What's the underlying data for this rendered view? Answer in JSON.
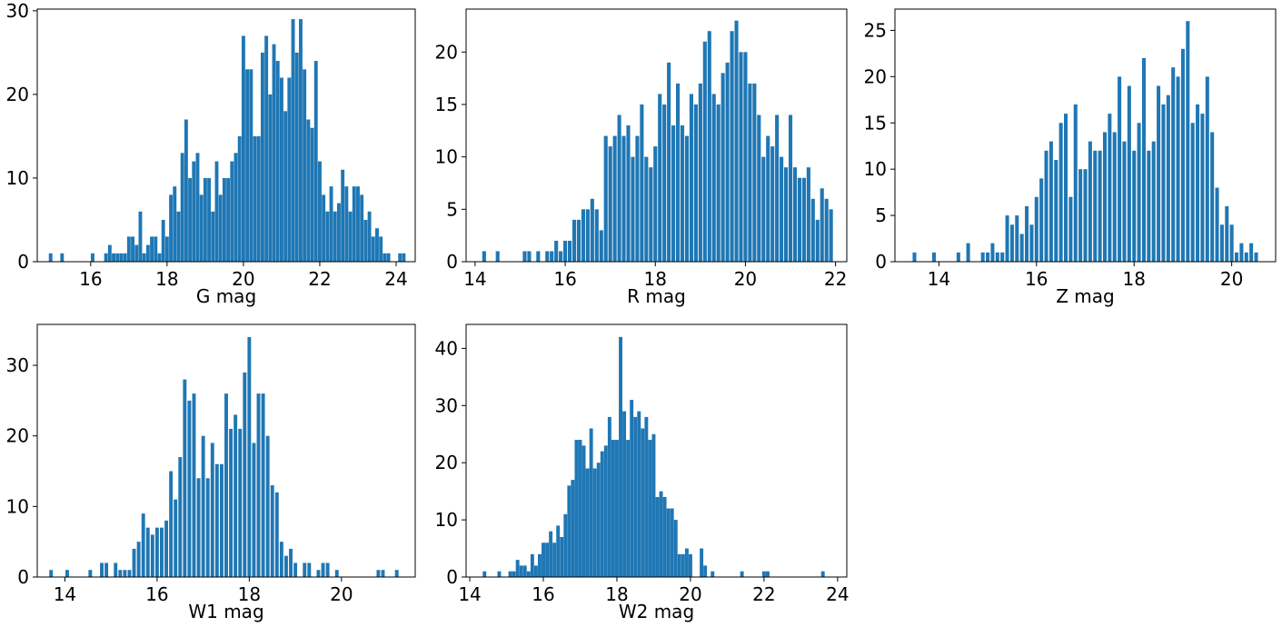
{
  "figure": {
    "background": "#ffffff",
    "bar_color": "#1f77b4"
  },
  "chart_data": [
    {
      "type": "bar",
      "title": "",
      "xlabel": "G mag",
      "ylabel": "",
      "xlim": [
        14.6,
        24.5
      ],
      "ylim": [
        0,
        30.2
      ],
      "xticks": [
        16,
        18,
        20,
        22,
        24
      ],
      "yticks": [
        0,
        10,
        20,
        30
      ],
      "bin_width": 0.093,
      "x": [
        14.95,
        15.25,
        16.05,
        16.4,
        16.5,
        16.6,
        16.7,
        16.8,
        16.9,
        17.0,
        17.1,
        17.2,
        17.3,
        17.4,
        17.5,
        17.6,
        17.7,
        17.8,
        17.9,
        18.0,
        18.1,
        18.2,
        18.3,
        18.4,
        18.5,
        18.6,
        18.7,
        18.8,
        18.9,
        19.0,
        19.1,
        19.2,
        19.3,
        19.4,
        19.5,
        19.6,
        19.7,
        19.8,
        19.9,
        20.0,
        20.1,
        20.2,
        20.3,
        20.4,
        20.5,
        20.6,
        20.7,
        20.8,
        20.9,
        21.0,
        21.1,
        21.2,
        21.3,
        21.4,
        21.5,
        21.6,
        21.7,
        21.8,
        21.9,
        22.0,
        22.1,
        22.2,
        22.3,
        22.4,
        22.5,
        22.6,
        22.7,
        22.8,
        22.9,
        23.0,
        23.1,
        23.2,
        23.3,
        23.4,
        23.5,
        23.6,
        23.7,
        23.8,
        24.1,
        24.2
      ],
      "y": [
        1,
        1,
        1,
        1,
        2,
        1,
        1,
        1,
        1,
        3,
        3,
        2,
        6,
        1,
        2,
        3,
        3,
        1,
        5,
        3,
        8,
        9,
        6,
        13,
        17,
        10,
        12,
        13,
        8,
        10,
        10,
        6,
        12,
        8,
        10,
        10,
        12,
        13,
        15,
        27,
        23,
        23,
        15,
        15,
        25,
        27,
        20,
        26,
        24,
        22,
        18,
        22,
        29,
        25,
        29,
        23,
        17,
        16,
        24,
        12,
        8,
        6,
        9,
        6,
        7,
        11,
        9,
        6,
        9,
        9,
        8,
        5,
        6,
        3,
        4,
        3,
        1,
        1,
        1,
        1
      ]
    },
    {
      "type": "bar",
      "title": "",
      "xlabel": "R mag",
      "ylabel": "",
      "xlim": [
        13.8,
        22.25
      ],
      "ylim": [
        0,
        24.1
      ],
      "xticks": [
        14,
        16,
        18,
        20,
        22
      ],
      "yticks": [
        0,
        5,
        10,
        15,
        20
      ],
      "bin_width": 0.083,
      "x": [
        14.2,
        14.5,
        15.1,
        15.2,
        15.4,
        15.6,
        15.7,
        15.8,
        15.9,
        16.0,
        16.1,
        16.2,
        16.3,
        16.4,
        16.5,
        16.6,
        16.7,
        16.8,
        16.9,
        17.0,
        17.1,
        17.2,
        17.3,
        17.4,
        17.5,
        17.6,
        17.7,
        17.8,
        17.9,
        18.0,
        18.1,
        18.2,
        18.3,
        18.4,
        18.5,
        18.6,
        18.7,
        18.8,
        18.9,
        19.0,
        19.1,
        19.2,
        19.3,
        19.4,
        19.5,
        19.6,
        19.7,
        19.8,
        19.9,
        20.0,
        20.1,
        20.2,
        20.3,
        20.4,
        20.5,
        20.6,
        20.7,
        20.8,
        20.9,
        21.0,
        21.1,
        21.2,
        21.3,
        21.4,
        21.5,
        21.6,
        21.7,
        21.8,
        21.9
      ],
      "y": [
        1,
        1,
        1,
        1,
        1,
        1,
        1,
        2,
        1,
        2,
        2,
        4,
        4,
        5,
        5,
        6,
        5,
        3,
        12,
        11,
        12,
        14,
        12,
        13,
        10,
        12,
        15,
        10,
        9,
        11,
        16,
        15,
        19,
        13,
        17,
        13,
        12,
        16,
        15,
        17,
        21,
        22,
        16,
        15,
        18,
        19,
        22,
        23,
        20,
        20,
        17,
        17,
        14,
        10,
        12,
        11,
        14,
        10,
        9,
        14,
        9,
        8,
        8,
        9,
        6,
        4,
        7,
        6,
        5
      ]
    },
    {
      "type": "bar",
      "title": "",
      "xlabel": "Z mag",
      "ylabel": "",
      "xlim": [
        13.1,
        20.9
      ],
      "ylim": [
        0,
        27.3
      ],
      "xticks": [
        14,
        16,
        18,
        20
      ],
      "yticks": [
        0,
        5,
        10,
        15,
        20,
        25
      ],
      "bin_width": 0.075,
      "x": [
        13.5,
        13.9,
        14.4,
        14.6,
        14.9,
        15.0,
        15.1,
        15.2,
        15.3,
        15.4,
        15.5,
        15.6,
        15.7,
        15.8,
        15.9,
        16.0,
        16.1,
        16.2,
        16.3,
        16.4,
        16.5,
        16.6,
        16.7,
        16.8,
        16.9,
        17.0,
        17.1,
        17.2,
        17.3,
        17.4,
        17.5,
        17.6,
        17.7,
        17.8,
        17.9,
        18.0,
        18.1,
        18.2,
        18.3,
        18.4,
        18.5,
        18.6,
        18.7,
        18.8,
        18.9,
        19.0,
        19.1,
        19.2,
        19.3,
        19.4,
        19.5,
        19.6,
        19.7,
        19.8,
        19.9,
        20.0,
        20.1,
        20.2,
        20.3,
        20.4,
        20.5
      ],
      "y": [
        1,
        1,
        1,
        2,
        1,
        1,
        2,
        1,
        1,
        5,
        4,
        5,
        3,
        6,
        4,
        7,
        9,
        12,
        13,
        11,
        15,
        16,
        7,
        17,
        10,
        10,
        13,
        12,
        12,
        14,
        16,
        14,
        20,
        13,
        19,
        12,
        15,
        22,
        12,
        13,
        19,
        17,
        18,
        21,
        20,
        23,
        26,
        15,
        17,
        16,
        20,
        14,
        8,
        4,
        6,
        4,
        1,
        2,
        1,
        2,
        1
      ]
    },
    {
      "type": "bar",
      "title": "",
      "xlabel": "W1 mag",
      "ylabel": "",
      "xlim": [
        13.4,
        21.6
      ],
      "ylim": [
        0,
        35.8
      ],
      "xticks": [
        14,
        16,
        18,
        20
      ],
      "yticks": [
        0,
        10,
        20,
        30
      ],
      "bin_width": 0.077,
      "x": [
        13.7,
        14.05,
        14.55,
        14.8,
        14.9,
        15.1,
        15.2,
        15.3,
        15.4,
        15.5,
        15.6,
        15.7,
        15.8,
        15.9,
        16.0,
        16.1,
        16.2,
        16.3,
        16.4,
        16.5,
        16.6,
        16.7,
        16.8,
        16.9,
        17.0,
        17.1,
        17.2,
        17.3,
        17.4,
        17.5,
        17.6,
        17.7,
        17.8,
        17.9,
        18.0,
        18.1,
        18.2,
        18.3,
        18.4,
        18.5,
        18.6,
        18.7,
        18.8,
        18.9,
        19.0,
        19.2,
        19.3,
        19.5,
        19.6,
        19.7,
        19.9,
        20.8,
        20.9,
        21.2
      ],
      "y": [
        1,
        1,
        1,
        2,
        2,
        2,
        1,
        1,
        1,
        4,
        5,
        9,
        7,
        6,
        7,
        7,
        8,
        15,
        11,
        17,
        28,
        25,
        26,
        14,
        20,
        14,
        19,
        16,
        16,
        26,
        21,
        23,
        21,
        29,
        34,
        19,
        26,
        26,
        20,
        13,
        12,
        5,
        3,
        4,
        2,
        2,
        2,
        1,
        2,
        2,
        1,
        1,
        1,
        1
      ]
    },
    {
      "type": "bar",
      "title": "",
      "xlabel": "W2 mag",
      "ylabel": "",
      "xlim": [
        13.9,
        24.25
      ],
      "ylim": [
        0,
        44.2
      ],
      "xticks": [
        14,
        16,
        18,
        20,
        22,
        24
      ],
      "yticks": [
        0,
        10,
        20,
        30,
        40
      ],
      "bin_width": 0.097,
      "x": [
        14.4,
        14.8,
        15.1,
        15.2,
        15.3,
        15.4,
        15.5,
        15.6,
        15.7,
        15.8,
        15.9,
        16.0,
        16.1,
        16.2,
        16.3,
        16.4,
        16.5,
        16.6,
        16.7,
        16.8,
        16.9,
        17.0,
        17.1,
        17.2,
        17.3,
        17.4,
        17.5,
        17.6,
        17.7,
        17.8,
        17.9,
        18.0,
        18.1,
        18.2,
        18.3,
        18.4,
        18.5,
        18.6,
        18.7,
        18.8,
        18.9,
        19.0,
        19.1,
        19.2,
        19.3,
        19.4,
        19.5,
        19.6,
        19.7,
        19.8,
        19.9,
        20.0,
        20.3,
        20.4,
        20.6,
        21.4,
        22.0,
        22.1,
        23.6
      ],
      "y": [
        1,
        1,
        1,
        1,
        3,
        2,
        2,
        1,
        4,
        2,
        4,
        6,
        6,
        8,
        6,
        9,
        7,
        11,
        16,
        17,
        24,
        24,
        23,
        19,
        26,
        19,
        20,
        22,
        23,
        28,
        24,
        24,
        42,
        29,
        24,
        31,
        28,
        29,
        26,
        28,
        24,
        25,
        14,
        15,
        14,
        12,
        12,
        10,
        4,
        4,
        5,
        4,
        5,
        2,
        1,
        1,
        1,
        1,
        1
      ]
    }
  ]
}
